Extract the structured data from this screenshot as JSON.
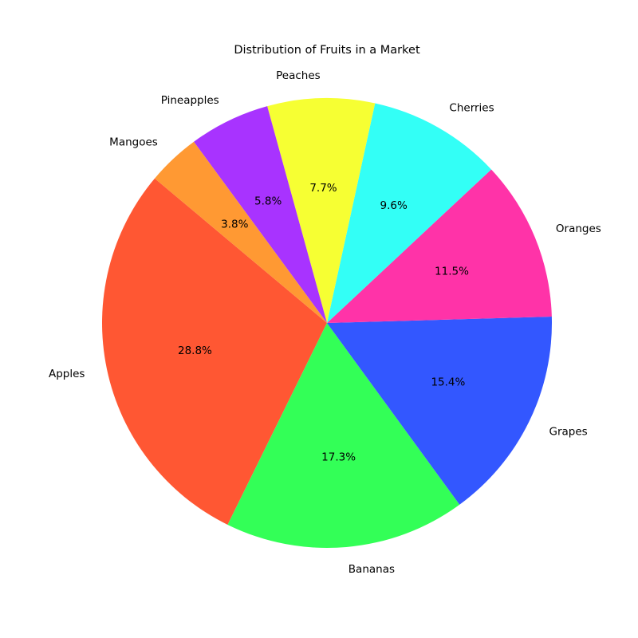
{
  "chart_data": {
    "type": "pie",
    "title": "Distribution of Fruits in a Market",
    "start_angle_deg": 140,
    "direction": "counterclockwise",
    "slices": [
      {
        "label": "Apples",
        "percent_label": "28.8%",
        "value": 28.8,
        "color": "#ff5733"
      },
      {
        "label": "Bananas",
        "percent_label": "17.3%",
        "value": 17.3,
        "color": "#33ff57"
      },
      {
        "label": "Grapes",
        "percent_label": "15.4%",
        "value": 15.4,
        "color": "#3357ff"
      },
      {
        "label": "Oranges",
        "percent_label": "11.5%",
        "value": 11.5,
        "color": "#ff33a8"
      },
      {
        "label": "Cherries",
        "percent_label": "9.6%",
        "value": 9.6,
        "color": "#33fff6"
      },
      {
        "label": "Peaches",
        "percent_label": "7.7%",
        "value": 7.7,
        "color": "#f6ff33"
      },
      {
        "label": "Pineapples",
        "percent_label": "5.8%",
        "value": 5.8,
        "color": "#a833ff"
      },
      {
        "label": "Mangoes",
        "percent_label": "3.8%",
        "value": 3.8,
        "color": "#ff9933"
      }
    ]
  }
}
